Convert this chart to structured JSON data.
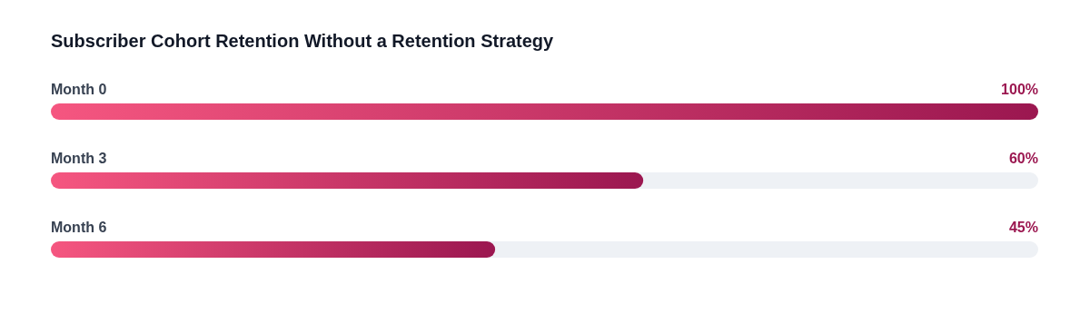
{
  "chart_data": {
    "type": "bar",
    "orientation": "horizontal",
    "title": "Subscriber Cohort Retention Without a Retention Strategy",
    "categories": [
      "Month 0",
      "Month 3",
      "Month 6"
    ],
    "values": [
      100,
      60,
      45
    ],
    "value_labels": [
      "100%",
      "60%",
      "45%"
    ],
    "color": "#9b1750",
    "xlim": [
      0,
      100
    ],
    "tick_labels": "y"
  }
}
